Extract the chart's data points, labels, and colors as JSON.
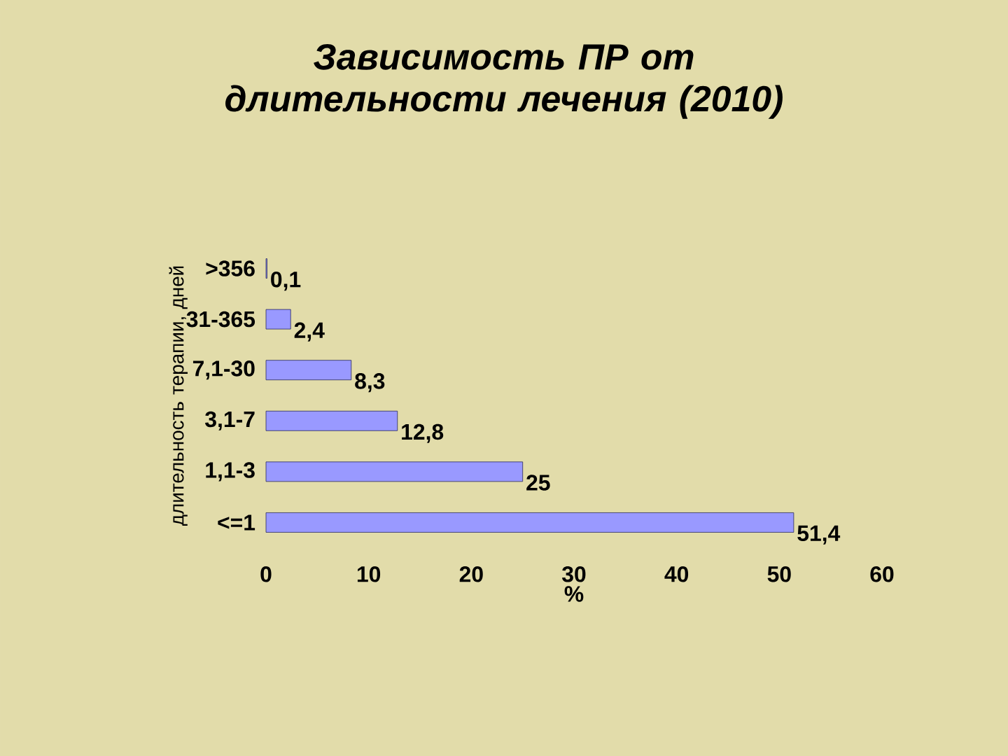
{
  "chart_data": {
    "type": "bar",
    "orientation": "horizontal",
    "title": "Зависимость ПР от длительности лечения (2010)",
    "xlabel": "%",
    "ylabel": "длительность терапии, дней",
    "categories": [
      ">356",
      "31-365",
      "7,1-30",
      "3,1-7",
      "1,1-3",
      "<=1"
    ],
    "values": [
      0.1,
      2.4,
      8.3,
      12.8,
      25,
      51.4
    ],
    "value_labels": [
      "0,1",
      "2,4",
      "8,3",
      "12,8",
      "25",
      "51,4"
    ],
    "color": "#9999ff",
    "xlim": [
      0,
      60
    ],
    "xticks": [
      0,
      10,
      20,
      30,
      40,
      50,
      60
    ]
  }
}
